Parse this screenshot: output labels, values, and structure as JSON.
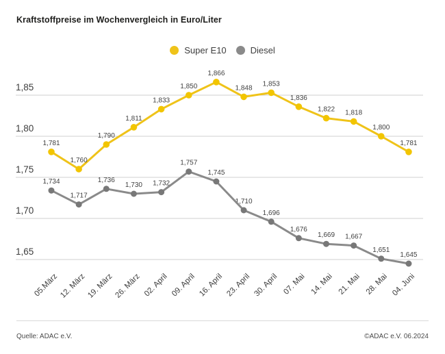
{
  "title": "Kraftstoffpreise im Wochenvergleich in Euro/Liter",
  "legend": {
    "items": [
      {
        "label": "Super E10",
        "color": "#efc319"
      },
      {
        "label": "Diesel",
        "color": "#8a8a8a"
      }
    ]
  },
  "footer": {
    "source": "Quelle: ADAC e.V.",
    "copyright": "©ADAC e.V. 06.2024"
  },
  "chart_data": {
    "type": "line",
    "title": "Kraftstoffpreise im Wochenvergleich in Euro/Liter",
    "categories": [
      "05.März",
      "12. März",
      "19. März",
      "26. März",
      "02. April",
      "09. April",
      "16. April",
      "23. April",
      "30. April",
      "07. Mai",
      "14. Mai",
      "21. Mai",
      "28. Mai",
      "04. Juni"
    ],
    "series": [
      {
        "name": "Super E10",
        "line_color": "#efc319",
        "marker_color": "#f2c500",
        "values": [
          1.781,
          1.76,
          1.79,
          1.811,
          1.833,
          1.85,
          1.866,
          1.848,
          1.853,
          1.836,
          1.822,
          1.818,
          1.8,
          1.781
        ]
      },
      {
        "name": "Diesel",
        "line_color": "#8a8a8a",
        "marker_color": "#787878",
        "values": [
          1.734,
          1.717,
          1.736,
          1.73,
          1.732,
          1.757,
          1.745,
          1.71,
          1.696,
          1.676,
          1.669,
          1.667,
          1.651,
          1.645
        ]
      }
    ],
    "decimal_separator": ",",
    "value_decimals": 3,
    "y_ticks": [
      {
        "label": "1,85",
        "value": 1.85
      },
      {
        "label": "1,80",
        "value": 1.8
      },
      {
        "label": "1,75",
        "value": 1.75
      },
      {
        "label": "1,70",
        "value": 1.7
      },
      {
        "label": "1,65",
        "value": 1.65
      }
    ],
    "ylim": [
      1.625,
      1.88
    ],
    "grid": true,
    "legend_position": "top",
    "gridline_color": "#cfcfcf"
  }
}
